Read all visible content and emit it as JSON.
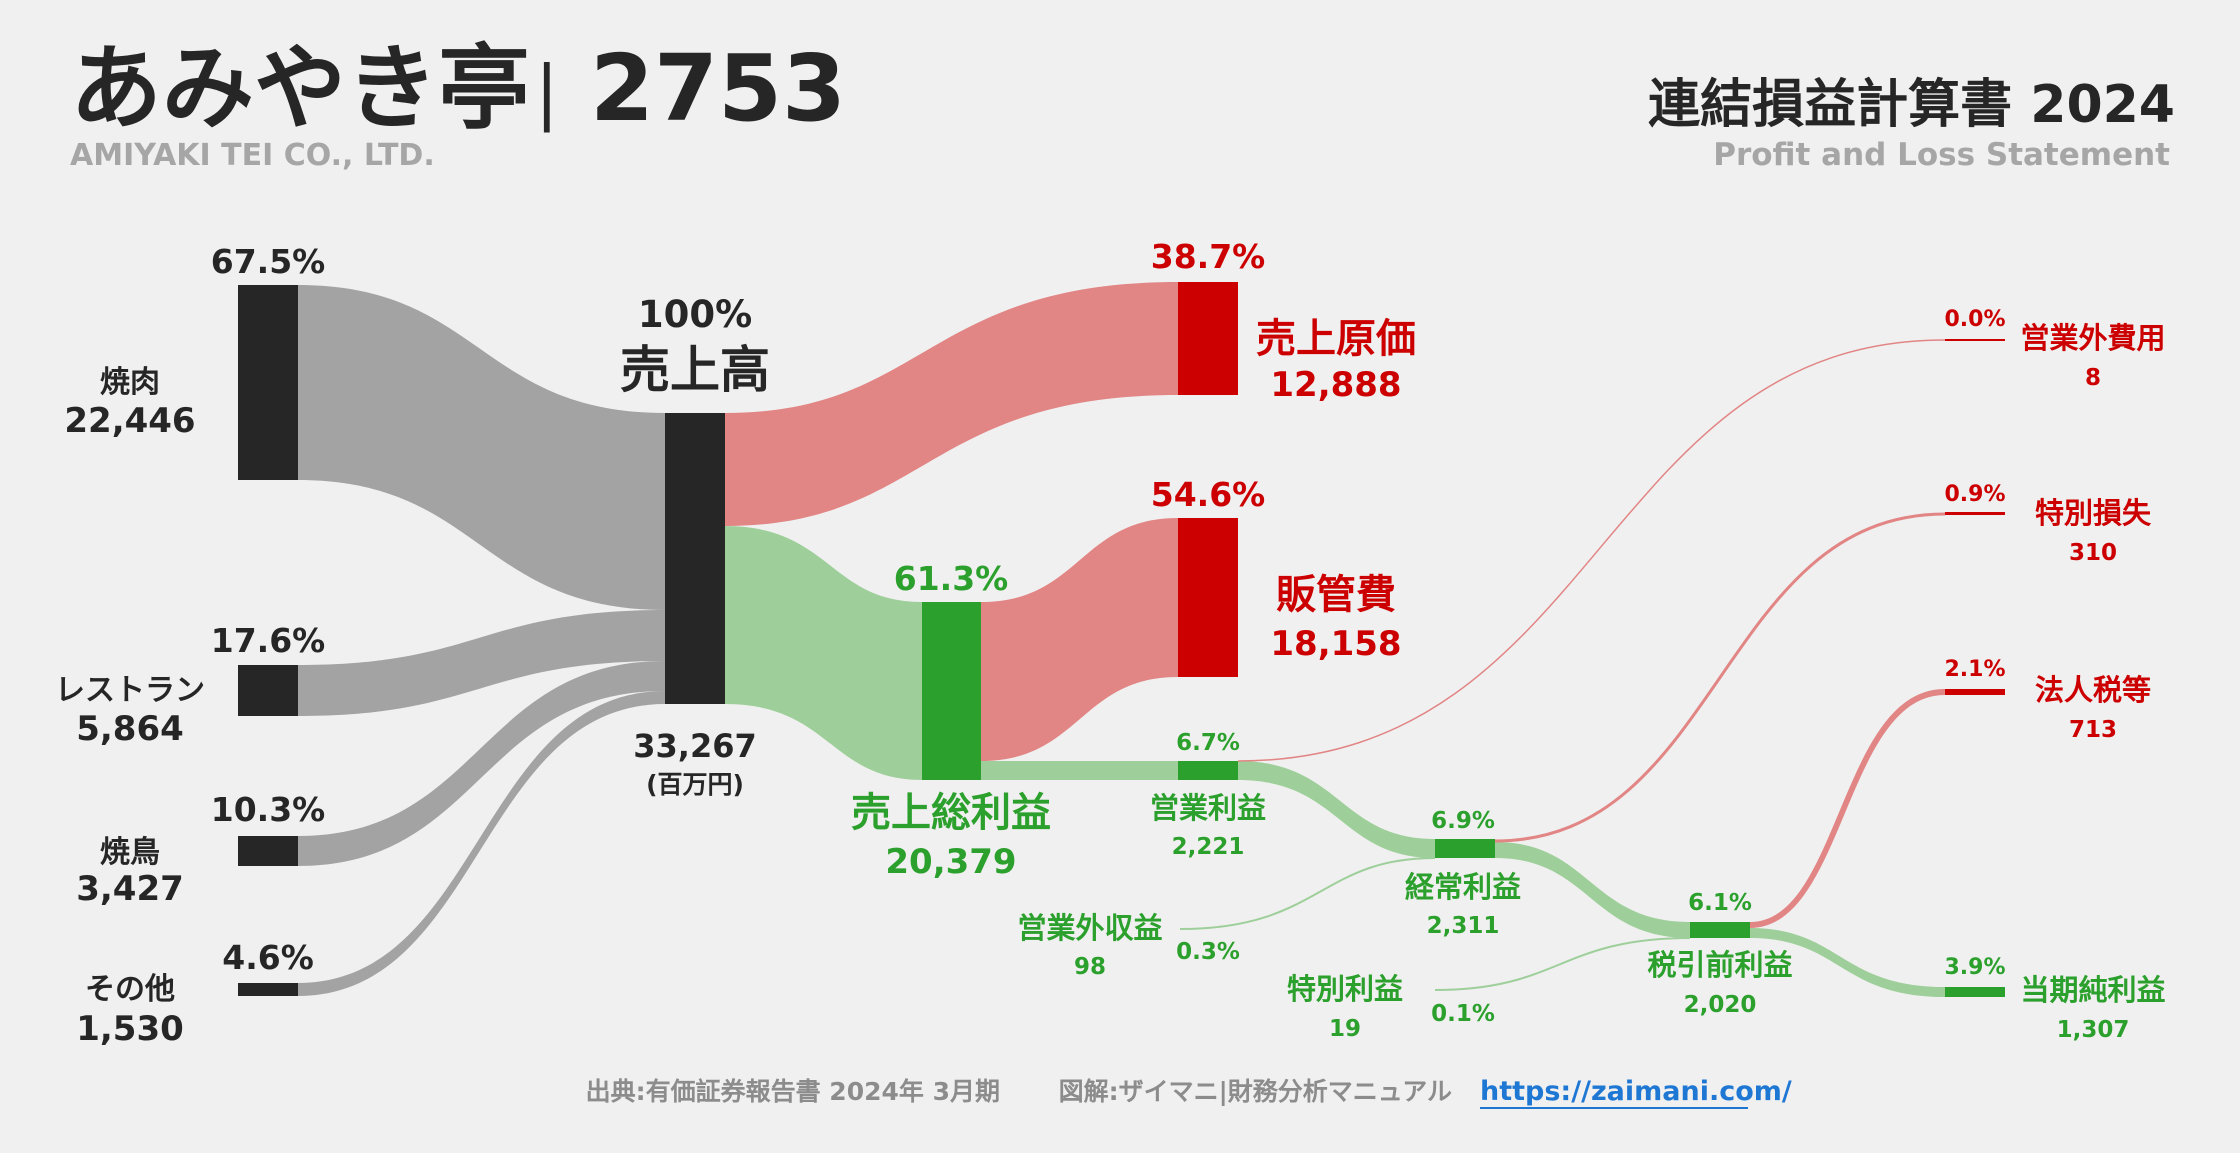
{
  "header": {
    "company_jp": "あみやき亭",
    "separator": "|",
    "ticker": "2753",
    "company_en": "AMIYAKI TEI CO., LTD.",
    "statement_jp": "連結損益計算書 2024",
    "statement_en": "Profit and Loss Statement"
  },
  "colors": {
    "dark": "#262626",
    "grey_flow": "#a3a3a3",
    "red": "#cc0000",
    "red_flow": "#e28585",
    "green": "#2ca02c",
    "green_flow": "#9ecf9a"
  },
  "chart_data": {
    "type": "sankey",
    "unit": "(百万円)",
    "revenue_segments": [
      {
        "name": "焼肉",
        "value": "22,446",
        "pct": "67.5%"
      },
      {
        "name": "レストラン",
        "value": "5,864",
        "pct": "17.6%"
      },
      {
        "name": "焼鳥",
        "value": "3,427",
        "pct": "10.3%"
      },
      {
        "name": "その他",
        "value": "1,530",
        "pct": "4.6%"
      }
    ],
    "revenue": {
      "name": "売上高",
      "value": "33,267",
      "pct": "100%"
    },
    "cost_of_sales": {
      "name": "売上原価",
      "value": "12,888",
      "pct": "38.7%"
    },
    "gross_profit": {
      "name": "売上総利益",
      "value": "20,379",
      "pct": "61.3%"
    },
    "sga": {
      "name": "販管費",
      "value": "18,158",
      "pct": "54.6%"
    },
    "operating_income": {
      "name": "営業利益",
      "value": "2,221",
      "pct": "6.7%"
    },
    "non_operating_income": {
      "name": "営業外収益",
      "value": "98",
      "pct": "0.3%"
    },
    "non_operating_expenses": {
      "name": "営業外費用",
      "value": "8",
      "pct": "0.0%"
    },
    "ordinary_income": {
      "name": "経常利益",
      "value": "2,311",
      "pct": "6.9%"
    },
    "extraordinary_income": {
      "name": "特別利益",
      "value": "19",
      "pct": "0.1%"
    },
    "extraordinary_losses": {
      "name": "特別損失",
      "value": "310",
      "pct": "0.9%"
    },
    "pretax_income": {
      "name": "税引前利益",
      "value": "2,020",
      "pct": "6.1%"
    },
    "income_taxes": {
      "name": "法人税等",
      "value": "713",
      "pct": "2.1%"
    },
    "net_income": {
      "name": "当期純利益",
      "value": "1,307",
      "pct": "3.9%"
    }
  },
  "footer": {
    "source": "出典:有価証券報告書 2024年 3月期",
    "credit": "図解:ザイマニ|財務分析マニュアル",
    "url": "https://zaimani.com/"
  }
}
